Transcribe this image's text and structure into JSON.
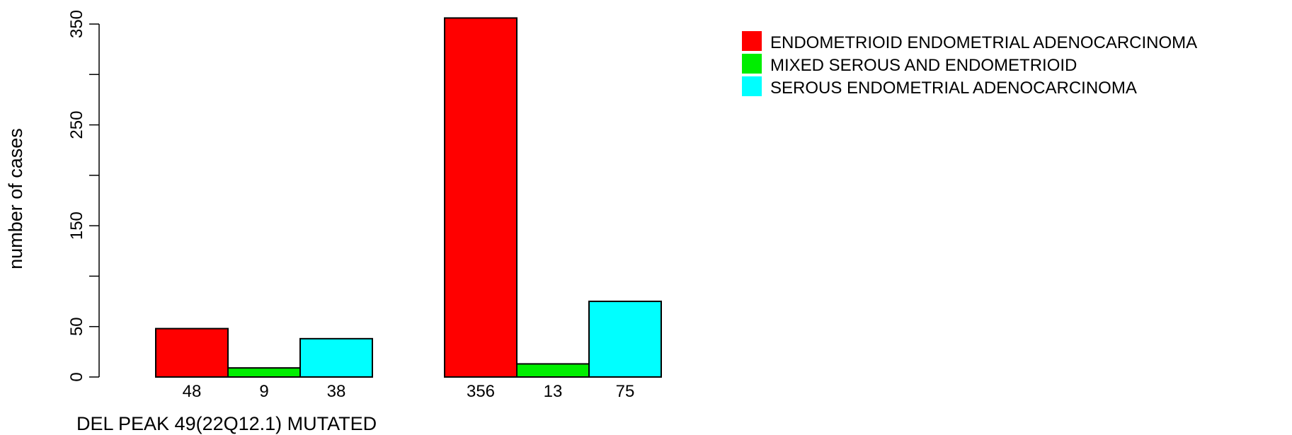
{
  "chart_data": {
    "type": "bar",
    "title": "",
    "xlabel": "DEL PEAK 49(22Q12.1) MUTATED",
    "ylabel": "number of cases",
    "ylim": [
      0,
      350
    ],
    "y_ticks": [
      0,
      50,
      150,
      250,
      350
    ],
    "grid": false,
    "legend_position": "top-right",
    "groups": [
      "",
      ""
    ],
    "series": [
      {
        "name": "ENDOMETRIOID ENDOMETRIAL ADENOCARCINOMA",
        "color": "#ff0000",
        "values": [
          48,
          356
        ]
      },
      {
        "name": "MIXED SEROUS AND ENDOMETRIOID",
        "color": "#00ee00",
        "values": [
          9,
          13
        ]
      },
      {
        "name": "SEROUS ENDOMETRIAL ADENOCARCINOMA",
        "color": "#00ffff",
        "values": [
          38,
          75
        ]
      }
    ],
    "bar_labels": [
      [
        "48",
        "9",
        "38"
      ],
      [
        "356",
        "13",
        "75"
      ]
    ]
  }
}
